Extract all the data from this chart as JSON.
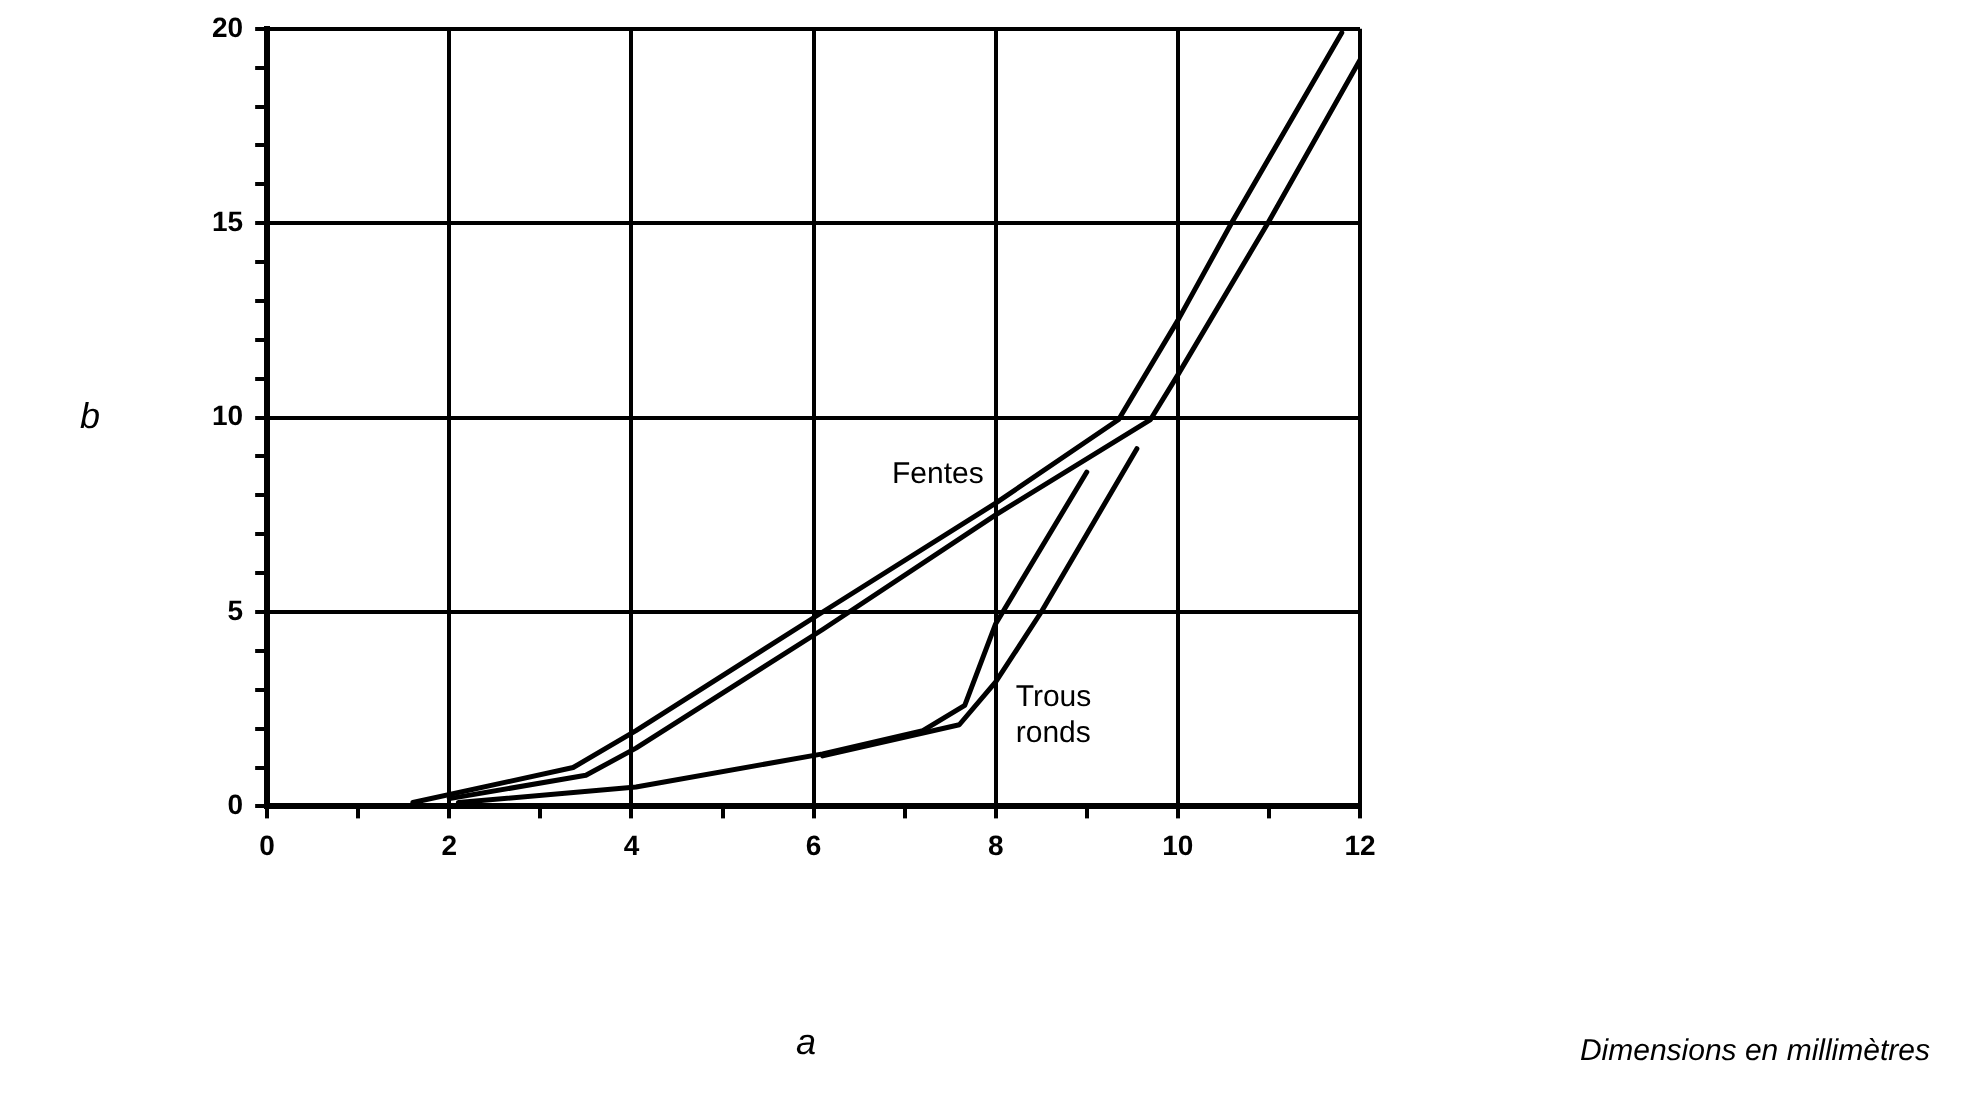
{
  "chart_data": {
    "type": "line",
    "xlabel": "a",
    "ylabel": "b",
    "annotations": [
      "Dimensions en millimètres"
    ],
    "xlim": [
      0,
      12
    ],
    "xticks": [
      0,
      {
        "value": 1,
        "label": null
      },
      2,
      {
        "value": 3,
        "label": null
      },
      4,
      {
        "value": 5,
        "label": null
      },
      6,
      {
        "value": 7,
        "label": null
      },
      8,
      {
        "value": 9,
        "label": null
      },
      10,
      {
        "value": 11,
        "label": null
      },
      12
    ],
    "ylim": [
      0,
      20
    ],
    "yticks": [
      0,
      {
        "value": 1,
        "label": null
      },
      {
        "value": 2,
        "label": null
      },
      {
        "value": 3,
        "label": null
      },
      {
        "value": 4,
        "label": null
      },
      5,
      {
        "value": 6,
        "label": null
      },
      {
        "value": 7,
        "label": null
      },
      {
        "value": 8,
        "label": null
      },
      {
        "value": 9,
        "label": null
      },
      10,
      {
        "value": 11,
        "label": null
      },
      {
        "value": 12,
        "label": null
      },
      {
        "value": 13,
        "label": null
      },
      {
        "value": 14,
        "label": null
      },
      15,
      {
        "value": 16,
        "label": null
      },
      {
        "value": 17,
        "label": null
      },
      {
        "value": 18,
        "label": null
      },
      {
        "value": 19,
        "label": null
      },
      20
    ],
    "grid": true,
    "legend": false,
    "marker": "none",
    "line_style": "solid",
    "series": [
      {
        "name": "Fentes",
        "color": "#000000",
        "x": [
          1.6,
          3.36,
          4.05,
          6.1,
          8,
          9.35,
          10,
          10.6,
          11.8
        ],
        "values": [
          0.1,
          1,
          1.95,
          5,
          7.8,
          9.95,
          12.5,
          15.05,
          19.9
        ]
      },
      {
        "color": "#000000",
        "x": [
          2,
          3.5,
          4.05,
          6.1,
          8,
          9.7,
          10,
          11,
          12
        ],
        "values": [
          0.2,
          0.8,
          1.5,
          4.55,
          7.5,
          9.95,
          11.1,
          15.05,
          19.2
        ]
      },
      {
        "color": "#000000",
        "x": [
          2.1,
          4.05,
          6.1,
          7.2,
          7.66,
          8,
          9
        ],
        "values": [
          0.1,
          0.5,
          1.35,
          1.95,
          2.6,
          4.7,
          8.6
        ]
      },
      {
        "name": "Trous ronds",
        "color": "#000000",
        "x": [
          6.1,
          7.6,
          8,
          8.5,
          9.55
        ],
        "values": [
          1.3,
          2.1,
          3.2,
          5,
          9.2
        ]
      }
    ]
  }
}
